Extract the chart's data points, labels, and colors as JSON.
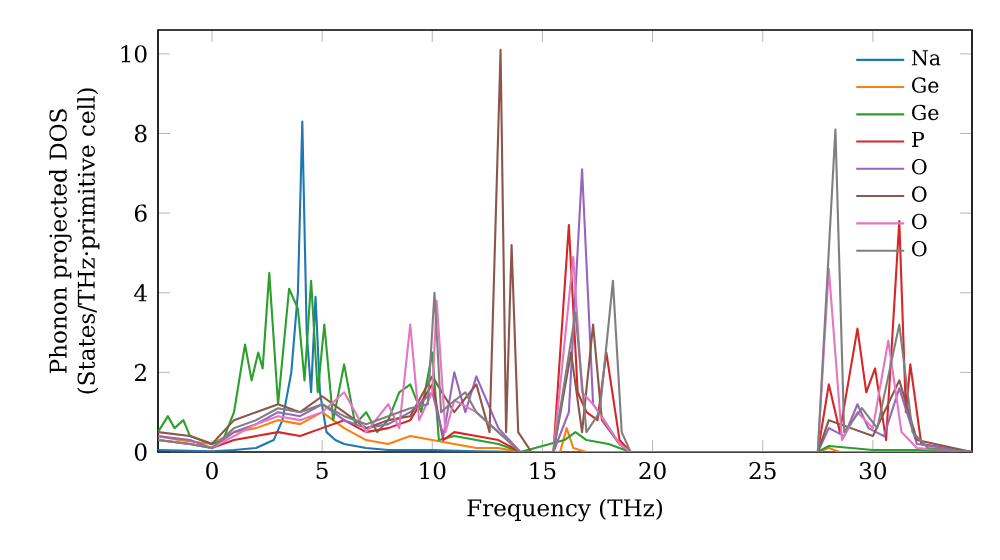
{
  "chart_data": {
    "type": "line",
    "xlabel": "Frequency (THz)",
    "ylabel": "Phonon projected DOS\n(States/THz·primitive cell)",
    "xlim": [
      -2.45,
      34.5
    ],
    "ylim": [
      0,
      10.6
    ],
    "xticks": [
      0,
      5,
      10,
      15,
      20,
      25,
      30
    ],
    "yticks": [
      0,
      2,
      4,
      6,
      8,
      10
    ],
    "legend": "top right",
    "grid": false,
    "series": [
      {
        "name": "Na",
        "color": "#1f77b4",
        "x": [
          -2.45,
          -1,
          0,
          1,
          2,
          2.8,
          3.2,
          3.6,
          3.9,
          4.1,
          4.3,
          4.5,
          4.7,
          4.9,
          5.2,
          5.6,
          6,
          7,
          8,
          10,
          12,
          14,
          19,
          27.5,
          34.5
        ],
        "values": [
          0.05,
          0.03,
          0.02,
          0.05,
          0.1,
          0.3,
          0.8,
          2,
          4,
          8.3,
          3,
          1.5,
          3.9,
          1.5,
          0.5,
          0.3,
          0.2,
          0.1,
          0.05,
          0.05,
          0.02,
          0,
          0,
          0,
          0
        ]
      },
      {
        "name": "Ge",
        "color": "#ff7f0e",
        "x": [
          -2.45,
          -1.5,
          0,
          1,
          2,
          3,
          4,
          5,
          6,
          7,
          8,
          9,
          10,
          11,
          12,
          13,
          14,
          15.8,
          16.1,
          16.4,
          17,
          19,
          27.5,
          28,
          28.5,
          34.5
        ],
        "values": [
          0.4,
          0.3,
          0.2,
          0.5,
          0.6,
          0.8,
          0.7,
          1.0,
          0.6,
          0.3,
          0.2,
          0.4,
          0.3,
          0.2,
          0.1,
          0.1,
          0,
          0,
          0.6,
          0.1,
          0,
          0,
          0,
          0.1,
          0,
          0
        ]
      },
      {
        "name": "Ge",
        "color": "#2ca02c",
        "x": [
          -2.45,
          -2,
          -1.7,
          -1.3,
          -1,
          0,
          0.5,
          1,
          1.5,
          1.8,
          2.1,
          2.3,
          2.6,
          3,
          3.5,
          3.9,
          4.2,
          4.5,
          4.8,
          5.1,
          5.5,
          6,
          6.5,
          7,
          7.5,
          8,
          8.5,
          9,
          9.5,
          10,
          10.3,
          11,
          12,
          13,
          14,
          16,
          16.5,
          17,
          18,
          19,
          27.5,
          28,
          29,
          30,
          32,
          34.5
        ],
        "values": [
          0.5,
          0.9,
          0.6,
          0.8,
          0.4,
          0.2,
          0.3,
          1.0,
          2.7,
          1.8,
          2.5,
          2.1,
          4.5,
          1.2,
          4.1,
          3.6,
          1.8,
          4.3,
          1.5,
          3.2,
          0.8,
          2.2,
          0.7,
          1.0,
          0.5,
          0.8,
          1.5,
          1.7,
          1.0,
          2.5,
          0.3,
          0.4,
          0.3,
          0.2,
          0,
          0.3,
          0.5,
          0.3,
          0.2,
          0,
          0,
          0.15,
          0.1,
          0.05,
          0.05,
          0
        ]
      },
      {
        "name": "P",
        "color": "#d62728",
        "x": [
          -2.45,
          -1,
          0,
          1,
          2,
          3,
          4,
          5,
          6,
          7,
          8,
          9,
          10,
          10.5,
          11,
          12,
          13,
          14,
          15.5,
          16.2,
          16.6,
          17,
          17.5,
          17.9,
          18.5,
          19,
          27.5,
          28,
          28.5,
          29.3,
          29.7,
          30.1,
          30.6,
          31.2,
          31.5,
          31.7,
          32.2,
          34.5
        ],
        "values": [
          0.3,
          0.2,
          0.1,
          0.3,
          0.4,
          0.5,
          0.4,
          0.6,
          0.8,
          0.5,
          0.6,
          0.8,
          1.7,
          0.3,
          0.5,
          0.4,
          0.3,
          0,
          0,
          5.7,
          1.5,
          1.0,
          0.8,
          2.5,
          0.3,
          0,
          0,
          1.7,
          0.5,
          3.1,
          1.5,
          2.1,
          0.3,
          5.8,
          1.0,
          2.2,
          0.2,
          0
        ]
      },
      {
        "name": "O",
        "color": "#9467bd",
        "x": [
          -2.45,
          -1,
          0,
          1,
          2,
          3,
          4,
          5,
          6,
          7,
          8,
          9,
          10,
          10.5,
          11,
          11.5,
          12,
          13,
          14,
          15.5,
          16.2,
          16.8,
          17.3,
          17.8,
          18.5,
          19,
          27.5,
          28,
          28.7,
          29.3,
          29.8,
          30.5,
          31.2,
          32,
          34.5
        ],
        "values": [
          0.4,
          0.3,
          0.1,
          0.5,
          0.7,
          1.0,
          0.9,
          1.2,
          0.8,
          0.6,
          0.7,
          1.0,
          1.5,
          0.4,
          2.0,
          1.0,
          1.9,
          0.6,
          0,
          0,
          1.0,
          7.1,
          1.2,
          0.8,
          0.2,
          0,
          0,
          0.6,
          0.4,
          1.2,
          0.6,
          0.4,
          1.6,
          0.2,
          0
        ]
      },
      {
        "name": "O",
        "color": "#8c564b",
        "x": [
          -2.45,
          -1,
          0,
          1,
          2,
          3,
          4,
          5,
          6,
          7,
          8,
          9,
          10,
          11,
          12,
          12.6,
          13.1,
          13.35,
          13.6,
          13.9,
          14.5,
          15.5,
          16.3,
          16.8,
          17.3,
          17.7,
          18.5,
          19,
          27.5,
          28,
          29,
          30,
          31.2,
          32,
          34.5
        ],
        "values": [
          0.5,
          0.4,
          0.2,
          0.8,
          1.0,
          1.2,
          1.0,
          1.4,
          1.0,
          0.6,
          0.8,
          0.9,
          1.9,
          1.0,
          1.7,
          0.5,
          10.1,
          0.5,
          5.2,
          0.5,
          0,
          0,
          2.5,
          0.5,
          3.2,
          0.8,
          0.2,
          0,
          0,
          0.8,
          0.6,
          0.4,
          1.8,
          0.3,
          0
        ]
      },
      {
        "name": "O",
        "color": "#e377c2",
        "x": [
          -2.45,
          -1,
          0,
          1,
          2,
          3,
          4,
          5,
          6,
          7,
          8,
          8.5,
          9,
          9.4,
          10,
          10.2,
          10.6,
          11,
          12,
          13,
          14,
          15.5,
          16.4,
          16.8,
          17.3,
          18.5,
          19,
          27.5,
          28,
          28.6,
          29.3,
          30,
          30.7,
          31.3,
          32,
          34.5
        ],
        "values": [
          0.3,
          0.2,
          0.1,
          0.4,
          0.7,
          0.9,
          0.8,
          1.0,
          1.5,
          0.5,
          1.2,
          0.6,
          3.2,
          0.8,
          1.5,
          3.8,
          0.5,
          1.3,
          1.0,
          0.5,
          0,
          0,
          4.9,
          1.5,
          1.2,
          0.2,
          0,
          0,
          4.6,
          0.3,
          1.0,
          0.6,
          2.8,
          0.5,
          0.1,
          0
        ]
      },
      {
        "name": "O",
        "color": "#7f7f7f",
        "x": [
          -2.45,
          -1,
          0,
          1,
          2,
          3,
          4,
          5,
          6,
          7,
          8,
          9,
          9.8,
          10.1,
          10.4,
          10.8,
          11.5,
          12,
          13,
          14,
          15.5,
          16.5,
          17,
          17.6,
          18.2,
          18.6,
          19,
          27.5,
          28.3,
          28.7,
          29.5,
          30.2,
          31.2,
          31.8,
          32.5,
          34.5
        ],
        "values": [
          0.3,
          0.2,
          0.1,
          0.6,
          0.8,
          1.1,
          1.0,
          1.2,
          0.9,
          0.7,
          0.9,
          1.1,
          1.2,
          4.0,
          1.0,
          1.2,
          1.5,
          1.0,
          0.5,
          0,
          0,
          3.5,
          0.5,
          1.0,
          4.3,
          0.5,
          0,
          0,
          8.1,
          0.5,
          1.1,
          0.6,
          3.2,
          0.5,
          0.1,
          0
        ]
      }
    ]
  }
}
